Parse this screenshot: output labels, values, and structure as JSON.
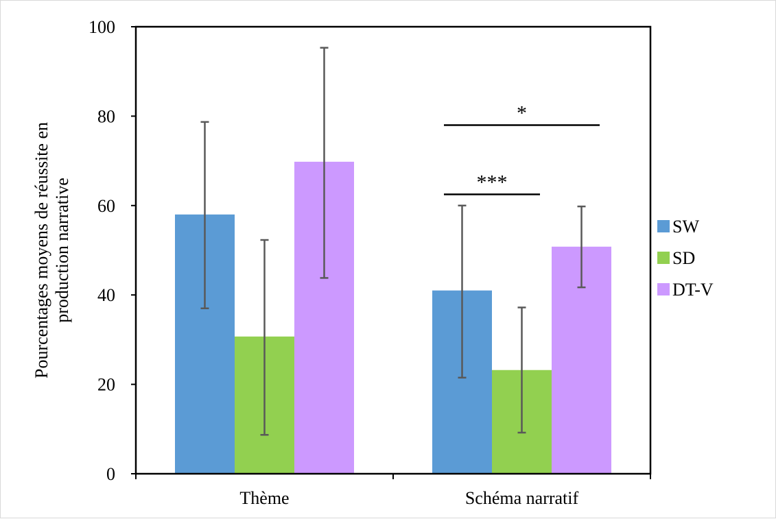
{
  "chart_data": {
    "type": "bar",
    "title": "",
    "xlabel": "",
    "ylabel": [
      "Pourcentages moyens de réussite en",
      "production narrative"
    ],
    "ylim": [
      0,
      100
    ],
    "yticks": [
      0,
      20,
      40,
      60,
      80,
      100
    ],
    "categories": [
      "Thème",
      "Schéma narratif"
    ],
    "series": [
      {
        "name": "SW",
        "color": "#5b9bd5",
        "values": [
          58,
          41
        ],
        "error_low": [
          37,
          21.5
        ],
        "error_high": [
          78.7,
          60
        ]
      },
      {
        "name": "SD",
        "color": "#92d050",
        "values": [
          30.7,
          23.2
        ],
        "error_low": [
          8.7,
          9.2
        ],
        "error_high": [
          52.3,
          37.2
        ]
      },
      {
        "name": "DT-V",
        "color": "#cc99ff",
        "values": [
          69.8,
          50.8
        ],
        "error_low": [
          43.8,
          41.7
        ],
        "error_high": [
          95.3,
          59.8
        ]
      }
    ],
    "legend_position": "right",
    "grid": false,
    "significance": [
      {
        "label": "*",
        "category": "Schéma narratif",
        "from_series": "SW",
        "to_series": "DT-V",
        "y": 78
      },
      {
        "label": "***",
        "category": "Schéma narratif",
        "from_series": "SW",
        "to_series": "SD",
        "y": 62.5
      }
    ]
  }
}
